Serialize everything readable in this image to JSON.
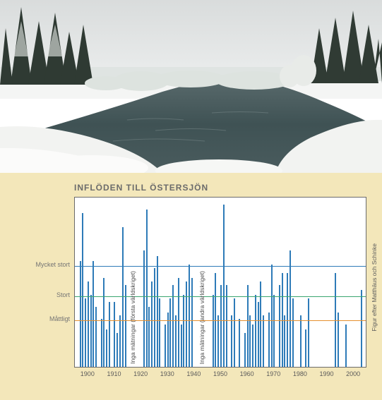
{
  "photo": {
    "credit": ""
  },
  "chart": {
    "type": "bar",
    "title": "INFLÖDEN TILL ÖSTERSJÖN",
    "panel_bg": "#f3e7ba",
    "plot_bg": "#ffffff",
    "bar_color": "#2e7bb8",
    "axis_color": "#6b6b6b",
    "title_color": "#6b6b6b",
    "label_color": "#747474",
    "title_fontsize": 12,
    "label_fontsize": 9,
    "x": {
      "min": 1895,
      "max": 2005
    },
    "y": {
      "min": 0,
      "max": 100
    },
    "x_ticks": [
      1900,
      1910,
      1920,
      1930,
      1940,
      1950,
      1960,
      1970,
      1980,
      1990,
      2000
    ],
    "thresholds": [
      {
        "label": "Mycket stort",
        "value": 60,
        "color": "#2e7bb8"
      },
      {
        "label": "Stort",
        "value": 42,
        "color": "#3aa66f"
      },
      {
        "label": "Måttligt",
        "value": 28,
        "color": "#e6902e"
      }
    ],
    "gaps": [
      {
        "start": 1915,
        "end": 1919,
        "label": "Inga mätningar (första världskriget)"
      },
      {
        "start": 1940,
        "end": 1946,
        "label": "Inga mätningar (andra världskriget)"
      }
    ],
    "bars": [
      {
        "year": 1897,
        "value": 62
      },
      {
        "year": 1898,
        "value": 90
      },
      {
        "year": 1899,
        "value": 40
      },
      {
        "year": 1900,
        "value": 50
      },
      {
        "year": 1901,
        "value": 42
      },
      {
        "year": 1902,
        "value": 62
      },
      {
        "year": 1903,
        "value": 35
      },
      {
        "year": 1905,
        "value": 28
      },
      {
        "year": 1906,
        "value": 52
      },
      {
        "year": 1907,
        "value": 22
      },
      {
        "year": 1908,
        "value": 38
      },
      {
        "year": 1910,
        "value": 38
      },
      {
        "year": 1911,
        "value": 20
      },
      {
        "year": 1912,
        "value": 30
      },
      {
        "year": 1913,
        "value": 82
      },
      {
        "year": 1914,
        "value": 48
      },
      {
        "year": 1921,
        "value": 68
      },
      {
        "year": 1922,
        "value": 92
      },
      {
        "year": 1923,
        "value": 35
      },
      {
        "year": 1924,
        "value": 50
      },
      {
        "year": 1925,
        "value": 58
      },
      {
        "year": 1926,
        "value": 65
      },
      {
        "year": 1927,
        "value": 40
      },
      {
        "year": 1929,
        "value": 25
      },
      {
        "year": 1930,
        "value": 32
      },
      {
        "year": 1931,
        "value": 40
      },
      {
        "year": 1932,
        "value": 48
      },
      {
        "year": 1933,
        "value": 30
      },
      {
        "year": 1934,
        "value": 52
      },
      {
        "year": 1935,
        "value": 25
      },
      {
        "year": 1936,
        "value": 42
      },
      {
        "year": 1937,
        "value": 50
      },
      {
        "year": 1938,
        "value": 60
      },
      {
        "year": 1939,
        "value": 52
      },
      {
        "year": 1947,
        "value": 42
      },
      {
        "year": 1948,
        "value": 55
      },
      {
        "year": 1949,
        "value": 30
      },
      {
        "year": 1950,
        "value": 48
      },
      {
        "year": 1951,
        "value": 95
      },
      {
        "year": 1952,
        "value": 48
      },
      {
        "year": 1954,
        "value": 30
      },
      {
        "year": 1955,
        "value": 40
      },
      {
        "year": 1957,
        "value": 28
      },
      {
        "year": 1959,
        "value": 20
      },
      {
        "year": 1960,
        "value": 48
      },
      {
        "year": 1961,
        "value": 30
      },
      {
        "year": 1962,
        "value": 25
      },
      {
        "year": 1963,
        "value": 42
      },
      {
        "year": 1964,
        "value": 38
      },
      {
        "year": 1965,
        "value": 50
      },
      {
        "year": 1966,
        "value": 30
      },
      {
        "year": 1968,
        "value": 32
      },
      {
        "year": 1969,
        "value": 60
      },
      {
        "year": 1970,
        "value": 42
      },
      {
        "year": 1972,
        "value": 48
      },
      {
        "year": 1973,
        "value": 55
      },
      {
        "year": 1974,
        "value": 30
      },
      {
        "year": 1975,
        "value": 55
      },
      {
        "year": 1976,
        "value": 68
      },
      {
        "year": 1977,
        "value": 40
      },
      {
        "year": 1980,
        "value": 30
      },
      {
        "year": 1982,
        "value": 22
      },
      {
        "year": 1983,
        "value": 40
      },
      {
        "year": 1993,
        "value": 55
      },
      {
        "year": 1994,
        "value": 32
      },
      {
        "year": 1997,
        "value": 25
      },
      {
        "year": 2003,
        "value": 45
      }
    ],
    "credit": "Figur efter Matthäus och Schinke"
  }
}
